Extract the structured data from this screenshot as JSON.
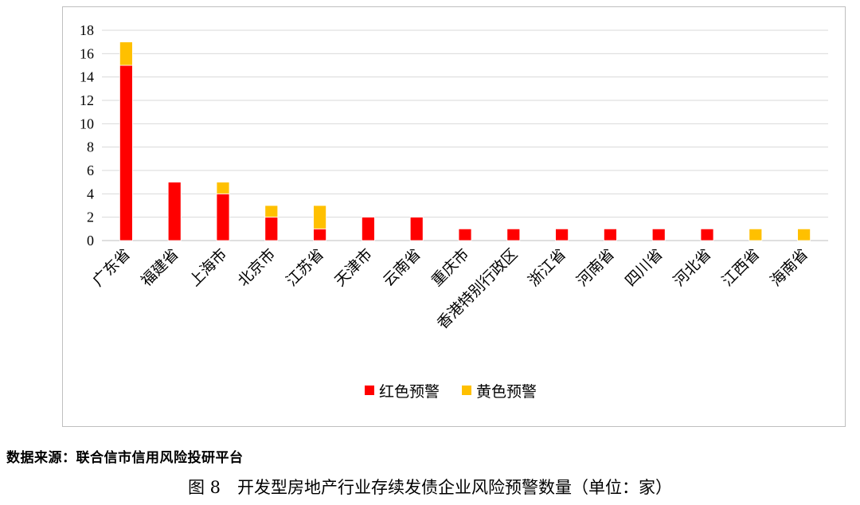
{
  "chart_data": {
    "type": "bar",
    "stacked": true,
    "categories": [
      "广东省",
      "福建省",
      "上海市",
      "北京市",
      "江苏省",
      "天津市",
      "云南省",
      "重庆市",
      "香港特别行政区",
      "浙江省",
      "河南省",
      "四川省",
      "河北省",
      "江西省",
      "海南省"
    ],
    "series": [
      {
        "name": "红色预警",
        "color": "#ff0000",
        "values": [
          15,
          5,
          4,
          2,
          1,
          2,
          2,
          1,
          1,
          1,
          1,
          1,
          1,
          0,
          0
        ]
      },
      {
        "name": "黄色预警",
        "color": "#ffc000",
        "values": [
          2,
          0,
          1,
          1,
          2,
          0,
          0,
          0,
          0,
          0,
          0,
          0,
          0,
          1,
          1
        ]
      }
    ],
    "ylim": [
      0,
      18
    ],
    "yticks": [
      "0",
      "2",
      "4",
      "6",
      "8",
      "10",
      "12",
      "14",
      "16",
      "18"
    ],
    "grid": true,
    "legend_position": "bottom"
  },
  "source_text": "数据来源：联合信市信用风险投研平台",
  "caption_text": "图 8　开发型房地产行业存续发债企业风险预警数量（单位：家）"
}
